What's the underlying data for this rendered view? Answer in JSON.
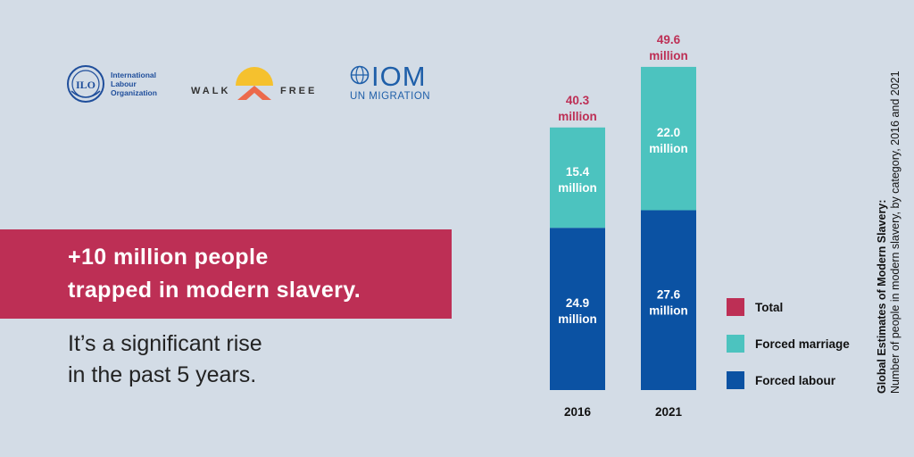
{
  "logos": {
    "ilo": {
      "line1": "International",
      "line2": "Labour",
      "line3": "Organization"
    },
    "walkfree": {
      "word1": "WALK",
      "word2": "FREE"
    },
    "iom": {
      "name": "IOM",
      "tagline": "UN MIGRATION"
    }
  },
  "headline": {
    "line1": "+10 million people",
    "line2": "trapped in modern slavery."
  },
  "subline": {
    "line1": "It’s a significant rise",
    "line2": "in the past 5 years."
  },
  "side_title": {
    "title": "Global Estimates of Modern Slavery:",
    "subtitle": "Number of people in modern slavery, by category, 2016 and 2021"
  },
  "colors": {
    "banner": "#bd2f55",
    "total": "#bd2f55",
    "forced_marriage": "#4cc3bf",
    "forced_labour": "#0b52a3",
    "background": "#d3dce6"
  },
  "chart_data": {
    "type": "bar",
    "stacked": true,
    "categories": [
      "2016",
      "2021"
    ],
    "series": [
      {
        "name": "Forced labour",
        "values": [
          24.9,
          27.6
        ],
        "labels": [
          "24.9",
          "27.6"
        ]
      },
      {
        "name": "Forced marriage",
        "values": [
          15.4,
          22.0
        ],
        "labels": [
          "15.4",
          "22.0"
        ]
      }
    ],
    "totals": {
      "name": "Total",
      "values": [
        40.3,
        49.6
      ],
      "labels": [
        "40.3",
        "49.6"
      ]
    },
    "unit": "million",
    "legend": [
      "Total",
      "Forced marriage",
      "Forced labour"
    ],
    "legend_position": "right",
    "ylim": [
      0,
      50
    ],
    "grid": false
  }
}
